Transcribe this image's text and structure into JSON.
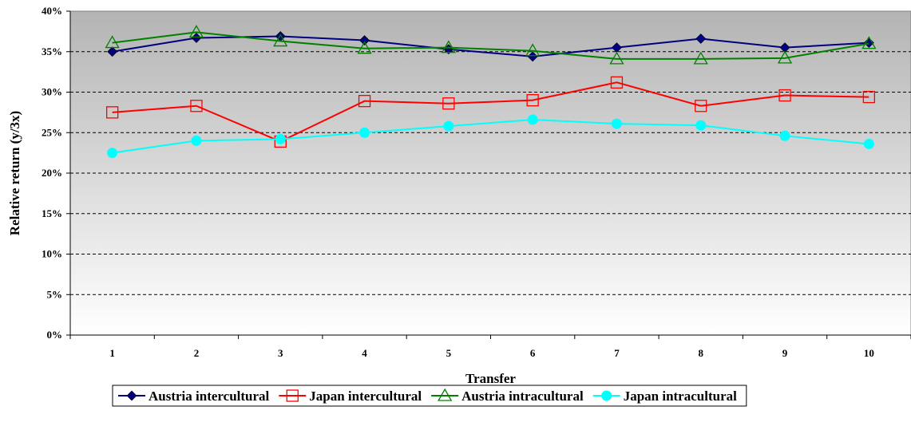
{
  "chart_data": {
    "type": "line",
    "title": "",
    "xlabel": "Transfer",
    "ylabel": "Relative return (y/3x)",
    "x": [
      "1",
      "2",
      "3",
      "4",
      "5",
      "6",
      "7",
      "8",
      "9",
      "10"
    ],
    "ylim": [
      0,
      40
    ],
    "yticks": [
      "0%",
      "5%",
      "10%",
      "15%",
      "20%",
      "25%",
      "30%",
      "35%",
      "40%"
    ],
    "grid": "horizontal-dashed",
    "legend_position": "bottom",
    "series": [
      {
        "name": "Austria intercultural",
        "color": "#000080",
        "marker": "diamond",
        "values": [
          35.0,
          36.7,
          36.9,
          36.4,
          35.3,
          34.4,
          35.5,
          36.6,
          35.5,
          36.1
        ]
      },
      {
        "name": "Japan intercultural",
        "color": "#ff0000",
        "marker": "square-open",
        "values": [
          27.5,
          28.3,
          23.9,
          28.9,
          28.6,
          29.0,
          31.2,
          28.3,
          29.6,
          29.4
        ]
      },
      {
        "name": "Austria intracultural",
        "color": "#008000",
        "marker": "triangle-open",
        "values": [
          36.1,
          37.4,
          36.3,
          35.4,
          35.5,
          35.1,
          34.1,
          34.1,
          34.2,
          36.0
        ]
      },
      {
        "name": "Japan intracultural",
        "color": "#00ffff",
        "marker": "circle",
        "values": [
          22.5,
          24.0,
          24.2,
          25.0,
          25.8,
          26.6,
          26.1,
          25.9,
          24.6,
          23.6
        ]
      }
    ]
  }
}
